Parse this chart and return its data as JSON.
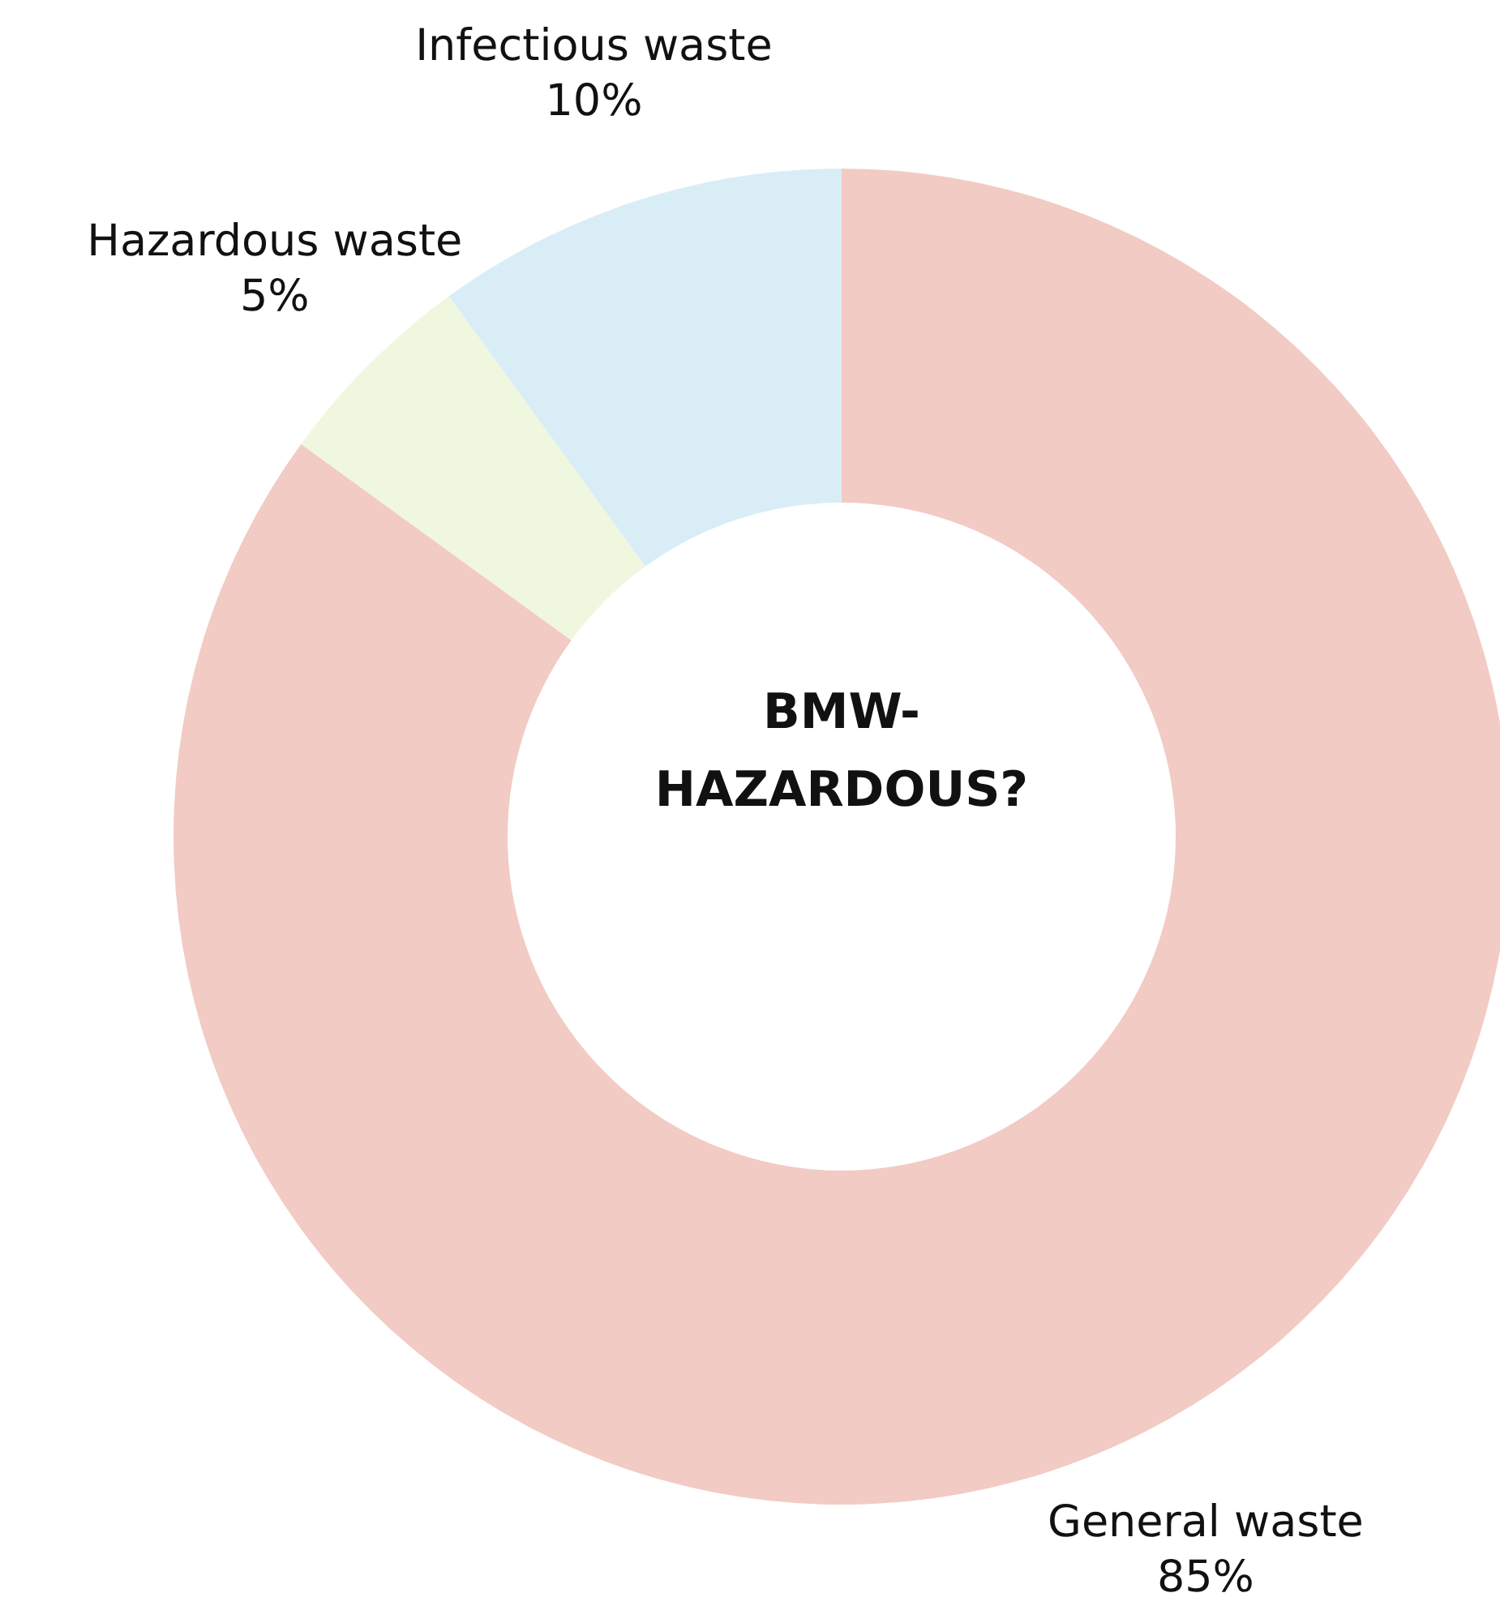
{
  "chart_data": {
    "type": "donut",
    "title": "BMW-HAZARDOUS?",
    "categories": [
      "General waste",
      "Hazardous waste",
      "Infectious waste"
    ],
    "values": [
      85,
      5,
      10
    ],
    "colors": [
      "#f2cbc4",
      "#f0f7df",
      "#d9edf6"
    ],
    "value_labels": [
      "85%",
      "5%",
      "10%"
    ],
    "legend": false
  }
}
